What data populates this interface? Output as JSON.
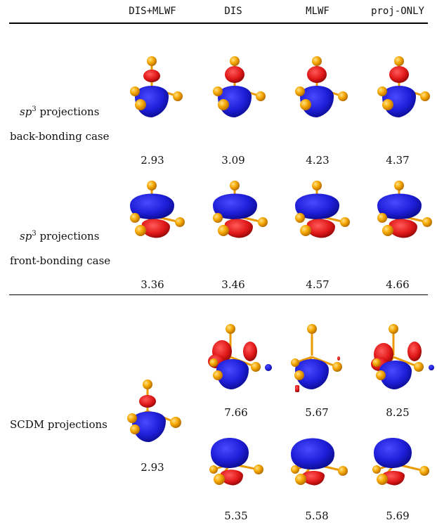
{
  "columns": [
    "DIS+MLWF",
    "DIS",
    "MLWF",
    "proj-ONLY"
  ],
  "rows": {
    "sp3_back": {
      "label_main": "sp",
      "label_sup": "3",
      "label_rest": " projections",
      "label_case": "back-bonding case",
      "values": [
        "2.93",
        "3.09",
        "4.23",
        "4.37"
      ]
    },
    "sp3_front": {
      "label_main": "sp",
      "label_sup": "3",
      "label_rest": " projections",
      "label_case": "front-bonding case",
      "values": [
        "3.36",
        "3.46",
        "4.57",
        "4.66"
      ]
    },
    "scdm": {
      "label": "SCDM projections",
      "dis_mlwf_value": "2.93",
      "upper_values": [
        "7.66",
        "5.67",
        "8.25"
      ],
      "lower_values": [
        "5.35",
        "5.58",
        "5.69"
      ]
    }
  },
  "colors": {
    "positive_lobe": "#2020d0",
    "negative_lobe": "#dd1515",
    "atom": "#f0a000",
    "bond": "#e89a00"
  }
}
